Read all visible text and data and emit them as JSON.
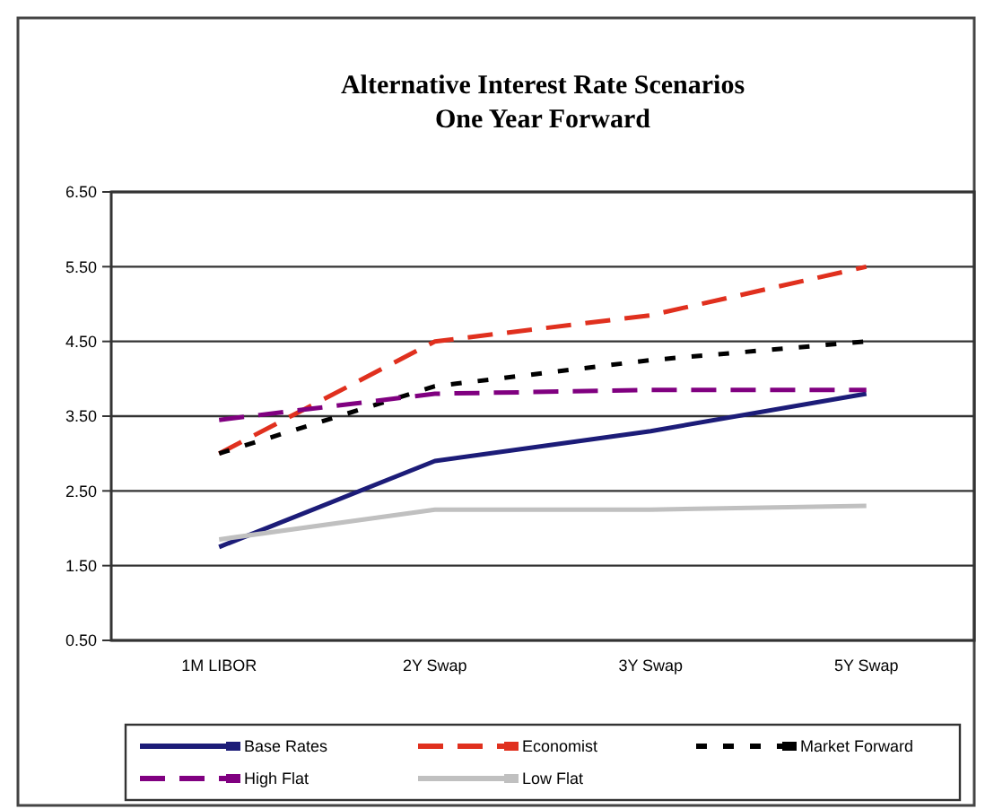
{
  "chart_data": {
    "type": "line",
    "title": "Alternative Interest Rate Scenarios",
    "subtitle": "One Year Forward",
    "categories": [
      "1M LIBOR",
      "2Y Swap",
      "3Y Swap",
      "5Y Swap"
    ],
    "series": [
      {
        "name": "Base Rates",
        "color": "#1c1c78",
        "line_style": "solid",
        "values": [
          1.75,
          2.9,
          3.3,
          3.8
        ]
      },
      {
        "name": "Economist",
        "color": "#e0301e",
        "line_style": "dashed",
        "values": [
          3.0,
          4.5,
          4.85,
          5.5
        ]
      },
      {
        "name": "Market Forward",
        "color": "#000000",
        "line_style": "dotted",
        "values": [
          3.0,
          3.9,
          4.25,
          4.5
        ]
      },
      {
        "name": "High Flat",
        "color": "#800080",
        "line_style": "dashed",
        "values": [
          3.45,
          3.8,
          3.85,
          3.85
        ]
      },
      {
        "name": "Low Flat",
        "color": "#c0c0c0",
        "line_style": "solid",
        "values": [
          1.85,
          2.25,
          2.25,
          2.3
        ]
      }
    ],
    "ylim": [
      0.5,
      6.5
    ],
    "yticks": [
      {
        "value": 0.5,
        "label": "0.50"
      },
      {
        "value": 1.5,
        "label": "1.50"
      },
      {
        "value": 2.5,
        "label": "2.50"
      },
      {
        "value": 3.5,
        "label": "3.50"
      },
      {
        "value": 4.5,
        "label": "4.50"
      },
      {
        "value": 5.5,
        "label": "5.50"
      },
      {
        "value": 6.5,
        "label": "6.50"
      }
    ],
    "grid": "y",
    "legend": "bottom",
    "marker": "none"
  }
}
